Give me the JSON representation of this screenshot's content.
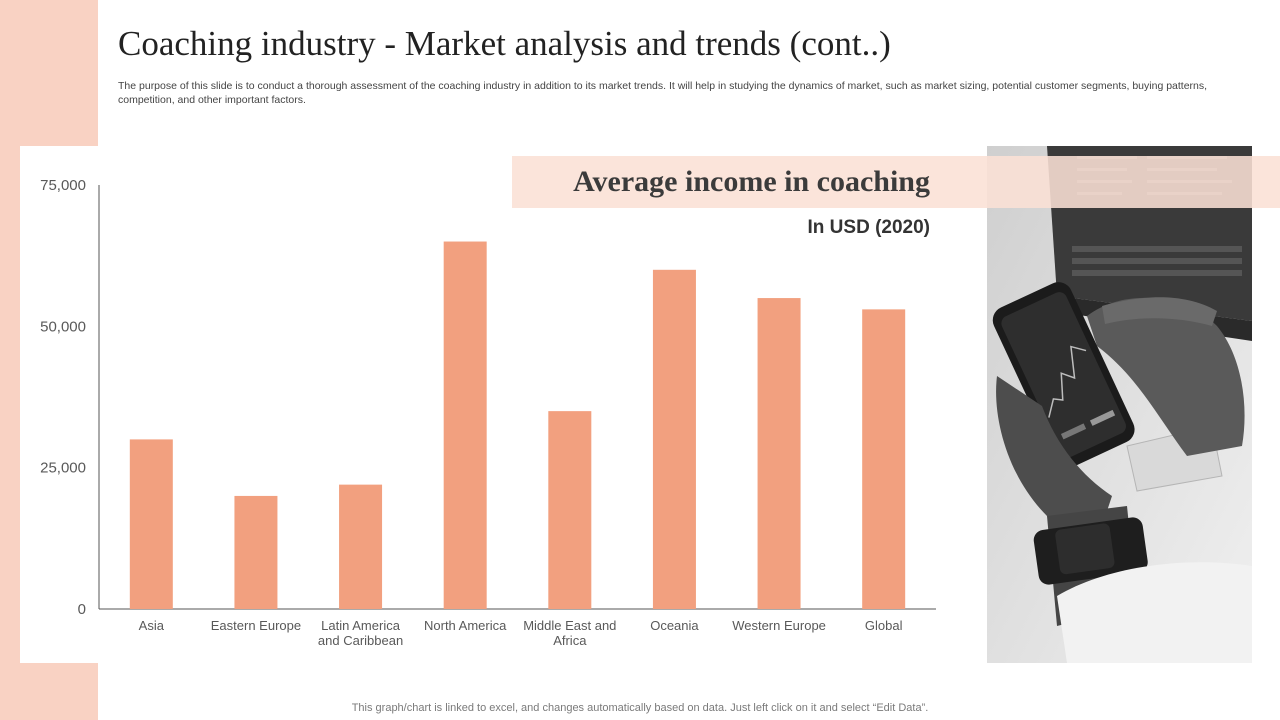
{
  "slide": {
    "title": "Coaching industry - Market analysis and trends (cont..)",
    "description": "The purpose of this slide is to conduct a thorough assessment of the coaching industry in addition to its market trends. It will help in studying the dynamics of market, such as market sizing, potential customer segments, buying patterns, competition, and other important factors.",
    "footer": "This graph/chart is linked to excel, and changes automatically based on data. Just left click on it and select “Edit Data”."
  },
  "banner": {
    "title": "Average income in coaching",
    "unit": "In USD (2020)"
  },
  "colors": {
    "bar": "#f2a07f",
    "accent_band": "#f9d2c3",
    "axis": "#555555"
  },
  "chart_data": {
    "type": "bar",
    "categories": [
      "Asia",
      "Eastern Europe",
      "Latin America and Caribbean",
      "North America",
      "Middle East and Africa",
      "Oceania",
      "Western Europe",
      "Global"
    ],
    "category_lines": [
      [
        "Asia"
      ],
      [
        "Eastern Europe"
      ],
      [
        "Latin America",
        "and Caribbean"
      ],
      [
        "North America"
      ],
      [
        "Middle East and",
        "Africa"
      ],
      [
        "Oceania"
      ],
      [
        "Western Europe"
      ],
      [
        "Global"
      ]
    ],
    "values": [
      30000,
      20000,
      22000,
      65000,
      35000,
      60000,
      55000,
      53000
    ],
    "ylim": [
      0,
      75000
    ],
    "yticks": [
      0,
      25000,
      50000,
      75000
    ],
    "ytick_labels": [
      "0",
      "25,000",
      "50,000",
      "75,000"
    ],
    "grid": false,
    "legend": "none"
  },
  "image": {
    "description_icon": "hands-holding-smartphone-photo"
  }
}
